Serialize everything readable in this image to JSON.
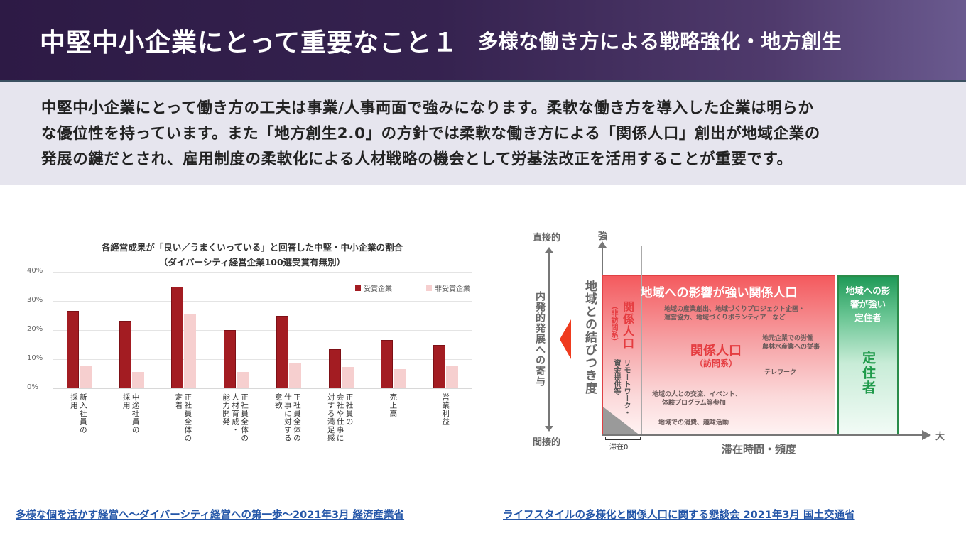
{
  "header": {
    "title": "中堅中小企業にとって重要なこと１",
    "subtitle": "多様な働き方による戦略強化・地方創生"
  },
  "intro": {
    "lines": [
      "中堅中小企業にとって働き方の工夫は事業/人事両面で強みになります。柔軟な働き方を導入した企業は明らか",
      "な優位性を持っています。また「地方創生2.0」の方針では柔軟な働き方による「関係人口」創出が地域企業の",
      "発展の鍵だとされ、雇用制度の柔軟化による人材戦略の機会として労基法改正を活用することが重要です。"
    ]
  },
  "chart_data": {
    "type": "bar",
    "title": "各経営成果が「良い／うまくいっている」と回答した中堅・中小企業の割合",
    "subtitle": "（ダイバーシティ経営企業100選受賞有無別）",
    "xlabel": "",
    "ylabel": "",
    "ylim": [
      0,
      40
    ],
    "yticks": [
      "0%",
      "10%",
      "20%",
      "30%",
      "40%"
    ],
    "grid": true,
    "legend_position": "top-right",
    "categories": [
      "新入社員の採用",
      "中途社員の採用",
      "正社員全体の定着",
      "正社員全体の人材育成・能力開発",
      "正社員全体の仕事に対する意欲",
      "正社員の会社や仕事に対する満足感",
      "売上高",
      "営業利益"
    ],
    "series": [
      {
        "name": "受賞企業",
        "color": "#a31c22",
        "values": [
          26.6,
          23.2,
          34.9,
          20.0,
          24.9,
          13.4,
          16.6,
          14.9
        ]
      },
      {
        "name": "非受賞企業",
        "color": "#f6cfcf",
        "values": [
          7.5,
          5.6,
          25.3,
          5.6,
          8.5,
          7.2,
          6.5,
          7.6
        ]
      }
    ],
    "xtick_labels_vertical": [
      [
        "新入社員の",
        "採用"
      ],
      [
        "中途社員の",
        "採用"
      ],
      [
        "正社員全体の",
        "定着"
      ],
      [
        "正社員全体の",
        "人材育成・",
        "能力開発"
      ],
      [
        "正社員全体の",
        "仕事に対する",
        "意欲"
      ],
      [
        "正社員の",
        "会社や仕事に",
        "対する満足感"
      ],
      [
        "売上高"
      ],
      [
        "営業利益"
      ]
    ]
  },
  "diagram": {
    "left_axis_top": "直接的",
    "left_axis_bottom": "間接的",
    "left_axis_label": "内発的発展への寄与",
    "y_axis_top": "強",
    "y_axis_label": "地域との結びつき度",
    "x_axis_label": "滞在時間・頻度",
    "x_axis_end": "大",
    "x_origin_label": "滞在0",
    "red_box_title": "地域への影響が強い関係人口",
    "non_visit_title": "関係人口",
    "non_visit_sub": "（非訪問系）",
    "non_visit_desc1": "リモートワーク・",
    "non_visit_desc2": "資金提供等",
    "visit_title": "関係人口",
    "visit_sub": "（訪問系）",
    "note_industry": [
      "地域の産業創出、地域づくりプロジェクト企画・",
      "運営協力、地域づくりボランティア　など"
    ],
    "note_labor": [
      "地元企業での労働",
      "農林水産業への従事"
    ],
    "note_telework": "テレワーク",
    "note_exchange": [
      "地域の人との交流、イベント、",
      "体験プログラム等参加"
    ],
    "note_consume": "地域での消費、趣味活動",
    "green_box_title": [
      "地域への影",
      "響が強い",
      "定住者"
    ],
    "green_box_label": "定住者"
  },
  "footer": {
    "link_left": "多様な個を活かす経営へ～ダイバーシティ経営への第一歩～2021年3月 経済産業省",
    "link_right": "ライフスタイルの多様化と関係人口に関する懇談会 2021年3月 国土交通省"
  }
}
